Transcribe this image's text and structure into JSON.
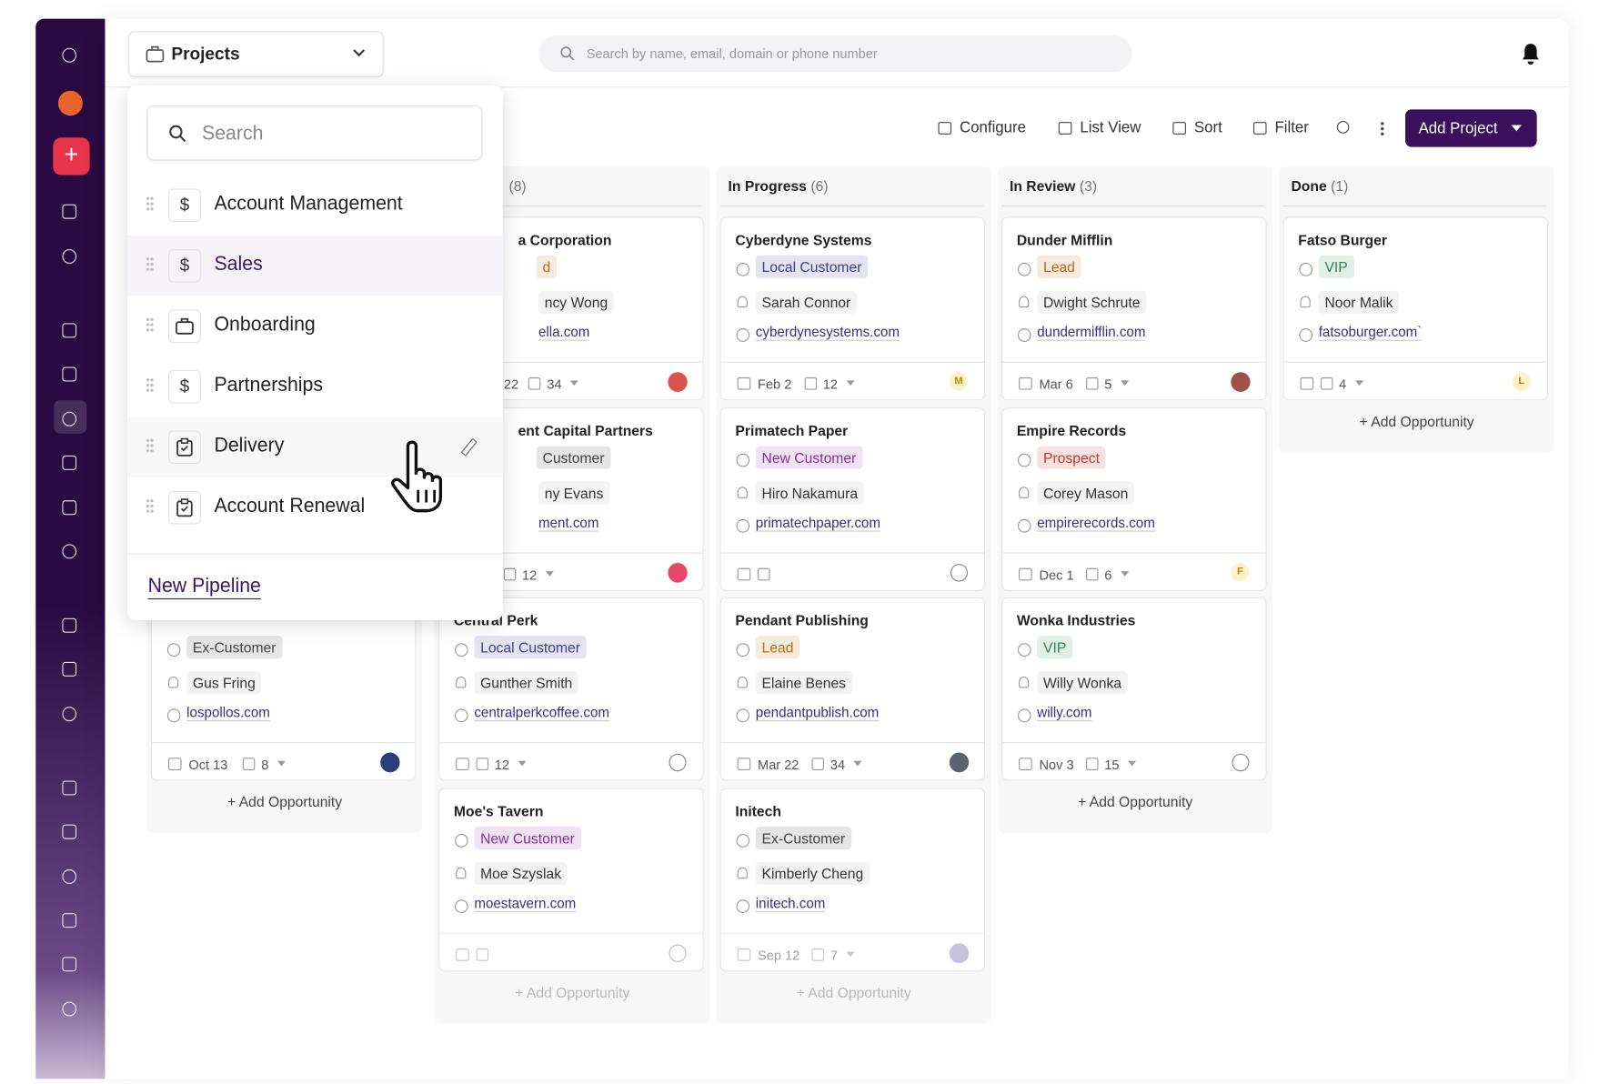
{
  "header": {
    "project_selector": "Projects",
    "search_placeholder": "Search by name, email, domain or phone number"
  },
  "dropdown": {
    "search_placeholder": "Search",
    "items": [
      {
        "label": "Account Management",
        "icon": "dollar"
      },
      {
        "label": "Sales",
        "icon": "dollar"
      },
      {
        "label": "Onboarding",
        "icon": "bag"
      },
      {
        "label": "Partnerships",
        "icon": "dollar"
      },
      {
        "label": "Delivery",
        "icon": "clip"
      },
      {
        "label": "Account Renewal",
        "icon": "clip"
      }
    ],
    "new_pipeline": "New Pipeline"
  },
  "toolbar": {
    "configure": "Configure",
    "list_view": "List View",
    "sort": "Sort",
    "filter": "Filter",
    "add_project": "Add Project"
  },
  "columns": [
    {
      "add_label": "+ Add Opportunity",
      "cards": [
        {
          "tag": "Ex-Customer",
          "tag_color": "#444444",
          "person": "Gus Fring",
          "domain": "lospollos.com",
          "date": "Oct 13",
          "tasks": "8",
          "avatar_color": "#2c3e7a"
        }
      ]
    },
    {
      "count": "(8)",
      "add_label": "+ Add Opportunity",
      "cards": [
        {
          "title": "a Corporation",
          "tag": "d",
          "tag_color": "#b86a12",
          "person": "ncy Wong",
          "domain": "ella.com",
          "date": "22",
          "tasks": "34",
          "avatar_color": "#d9534f"
        },
        {
          "title": "ent Capital Partners",
          "tag": "Customer",
          "tag_color": "#444444",
          "person": "ny Evans",
          "domain": "ment.com",
          "tasks": "12",
          "avatar_color": "#e8476a"
        },
        {
          "title": "Central Perk",
          "tag": "Local Customer",
          "tag_color": "#3b3f8f",
          "person": "Gunther Smith",
          "domain": "centralperkcoffee.com",
          "tasks": "12"
        },
        {
          "title": "Moe's Tavern",
          "tag": "New Customer",
          "tag_color": "#8a2f9e",
          "person": "Moe Szyslak",
          "domain": "moestavern.com"
        }
      ]
    },
    {
      "title": "In Progress",
      "count": "(6)",
      "add_label": "+ Add Opportunity",
      "cards": [
        {
          "title": "Cyberdyne Systems",
          "tag": "Local Customer",
          "tag_color": "#3b3f8f",
          "person": "Sarah Connor",
          "domain": "cyberdynesystems.com",
          "date": "Feb 2",
          "tasks": "12",
          "avatar": "M"
        },
        {
          "title": "Primatech Paper",
          "tag": "New Customer",
          "tag_color": "#8a2f9e",
          "person": "Hiro Nakamura",
          "domain": "primatechpaper.com"
        },
        {
          "title": "Pendant Publishing",
          "tag": "Lead",
          "tag_color": "#b86a12",
          "person": "Elaine Benes",
          "domain": "pendantpublish.com",
          "date": "Mar 22",
          "tasks": "34",
          "avatar_color": "#5a6370"
        },
        {
          "title": "Initech",
          "tag": "Ex-Customer",
          "tag_color": "#444444",
          "person": "Kimberly Cheng",
          "domain": "initech.com",
          "date": "Sep 12",
          "tasks": "7",
          "avatar_color": "#9a8fc0"
        }
      ]
    },
    {
      "title": "In Review",
      "count": "(3)",
      "add_label": "+ Add Opportunity",
      "cards": [
        {
          "title": "Dunder Mifflin",
          "tag": "Lead",
          "tag_color": "#b86a12",
          "person": "Dwight Schrute",
          "domain": "dundermifflin.com",
          "date": "Mar 6",
          "tasks": "5",
          "avatar_color": "#a0524a"
        },
        {
          "title": "Empire Records",
          "tag": "Prospect",
          "tag_color": "#c0392b",
          "person": "Corey Mason",
          "domain": "empirerecords.com",
          "date": "Dec 1",
          "tasks": "6",
          "avatar": "F"
        },
        {
          "title": "Wonka Industries",
          "tag": "VIP",
          "tag_color": "#2a8a4a",
          "person": "Willy Wonka",
          "domain": "willy.com",
          "date": "Nov 3",
          "tasks": "15"
        }
      ]
    },
    {
      "title": "Done",
      "count": "(1)",
      "add_label": "+ Add Opportunity",
      "cards": [
        {
          "title": "Fatso Burger",
          "tag": "VIP",
          "tag_color": "#2a8a4a",
          "person": "Noor Malik",
          "domain": "fatsoburger.com`",
          "tasks": "4",
          "avatar": "L"
        }
      ]
    }
  ]
}
